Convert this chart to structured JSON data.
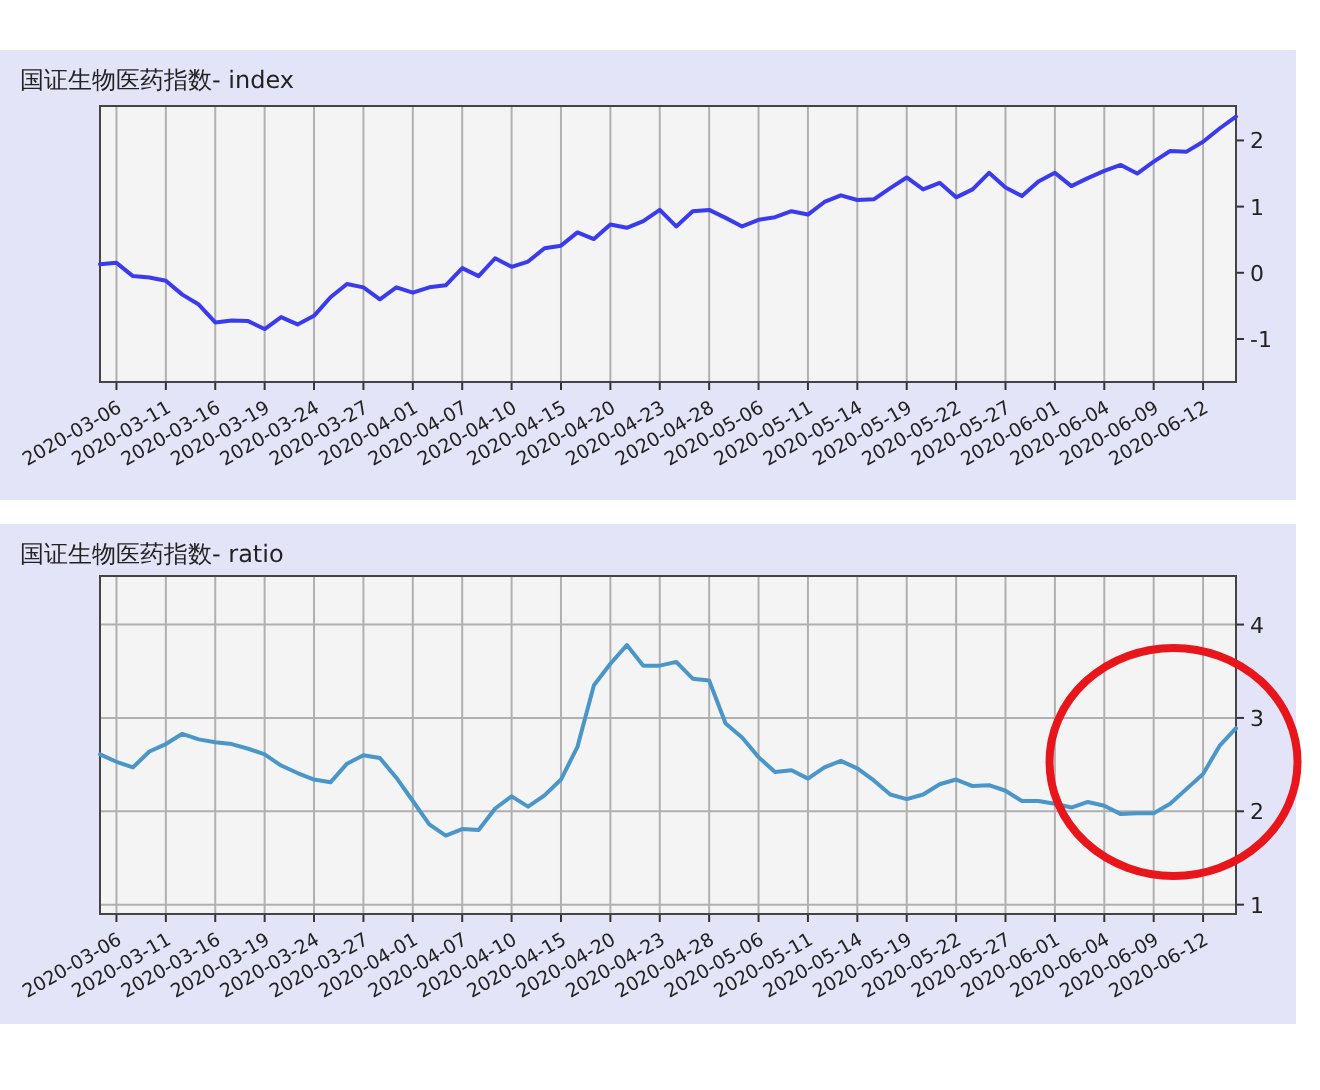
{
  "chart_data": [
    {
      "type": "line",
      "title": "国证生物医药指数- index",
      "grid": "x",
      "categories": [
        null,
        "2020-03-06",
        null,
        null,
        "2020-03-11",
        null,
        null,
        "2020-03-16",
        null,
        null,
        "2020-03-19",
        null,
        null,
        "2020-03-24",
        null,
        null,
        "2020-03-27",
        null,
        null,
        "2020-04-01",
        null,
        null,
        "2020-04-07",
        null,
        null,
        "2020-04-10",
        null,
        null,
        "2020-04-15",
        null,
        null,
        "2020-04-20",
        null,
        null,
        "2020-04-23",
        null,
        null,
        "2020-04-28",
        null,
        null,
        "2020-05-06",
        null,
        null,
        "2020-05-11",
        null,
        null,
        "2020-05-14",
        null,
        null,
        "2020-05-19",
        null,
        null,
        "2020-05-22",
        null,
        null,
        "2020-05-27",
        null,
        null,
        "2020-06-01",
        null,
        null,
        "2020-06-04",
        null,
        null,
        "2020-06-09",
        null,
        null,
        "2020-06-12",
        null,
        null
      ],
      "ylim": [
        -1.65,
        2.52
      ],
      "yticks": [
        -1,
        0,
        1,
        2
      ],
      "series": [
        {
          "color": "#3b3bee",
          "values": [
            0.13,
            0.15,
            -0.05,
            -0.07,
            -0.12,
            -0.33,
            -0.48,
            -0.75,
            -0.72,
            -0.73,
            -0.85,
            -0.67,
            -0.78,
            -0.65,
            -0.37,
            -0.17,
            -0.22,
            -0.4,
            -0.22,
            -0.3,
            -0.22,
            -0.19,
            0.07,
            -0.05,
            0.22,
            0.09,
            0.17,
            0.37,
            0.41,
            0.61,
            0.51,
            0.73,
            0.68,
            0.78,
            0.95,
            0.7,
            0.93,
            0.95,
            0.83,
            0.7,
            0.8,
            0.84,
            0.93,
            0.88,
            1.07,
            1.17,
            1.1,
            1.11,
            1.28,
            1.44,
            1.26,
            1.36,
            1.14,
            1.26,
            1.51,
            1.29,
            1.16,
            1.38,
            1.51,
            1.31,
            1.43,
            1.54,
            1.63,
            1.5,
            1.68,
            1.84,
            1.83,
            1.98,
            2.18,
            2.36
          ]
        }
      ]
    },
    {
      "type": "line",
      "title": "国证生物医药指数- ratio",
      "grid": true,
      "categories": [
        null,
        "2020-03-06",
        null,
        null,
        "2020-03-11",
        null,
        null,
        "2020-03-16",
        null,
        null,
        "2020-03-19",
        null,
        null,
        "2020-03-24",
        null,
        null,
        "2020-03-27",
        null,
        null,
        "2020-04-01",
        null,
        null,
        "2020-04-07",
        null,
        null,
        "2020-04-10",
        null,
        null,
        "2020-04-15",
        null,
        null,
        "2020-04-20",
        null,
        null,
        "2020-04-23",
        null,
        null,
        "2020-04-28",
        null,
        null,
        "2020-05-06",
        null,
        null,
        "2020-05-11",
        null,
        null,
        "2020-05-14",
        null,
        null,
        "2020-05-19",
        null,
        null,
        "2020-05-22",
        null,
        null,
        "2020-05-27",
        null,
        null,
        "2020-06-01",
        null,
        null,
        "2020-06-04",
        null,
        null,
        "2020-06-09",
        null,
        null,
        "2020-06-12",
        null,
        null
      ],
      "ylim": [
        0.9,
        4.52
      ],
      "yticks": [
        1,
        2,
        3,
        4
      ],
      "series": [
        {
          "color": "#4a96c8",
          "values": [
            2.61,
            2.53,
            2.47,
            2.64,
            2.72,
            2.83,
            2.77,
            2.74,
            2.72,
            2.67,
            2.61,
            2.49,
            2.41,
            2.34,
            2.31,
            2.51,
            2.6,
            2.57,
            2.36,
            2.11,
            1.86,
            1.74,
            1.81,
            1.8,
            2.03,
            2.16,
            2.05,
            2.17,
            2.34,
            2.69,
            3.35,
            3.58,
            3.78,
            3.56,
            3.56,
            3.6,
            3.42,
            3.4,
            2.94,
            2.79,
            2.58,
            2.42,
            2.44,
            2.35,
            2.47,
            2.54,
            2.46,
            2.33,
            2.18,
            2.13,
            2.18,
            2.29,
            2.34,
            2.27,
            2.28,
            2.22,
            2.11,
            2.11,
            2.08,
            2.04,
            2.1,
            2.06,
            1.97,
            1.98,
            1.98,
            2.08,
            2.24,
            2.4,
            2.7,
            2.89
          ]
        }
      ]
    }
  ]
}
